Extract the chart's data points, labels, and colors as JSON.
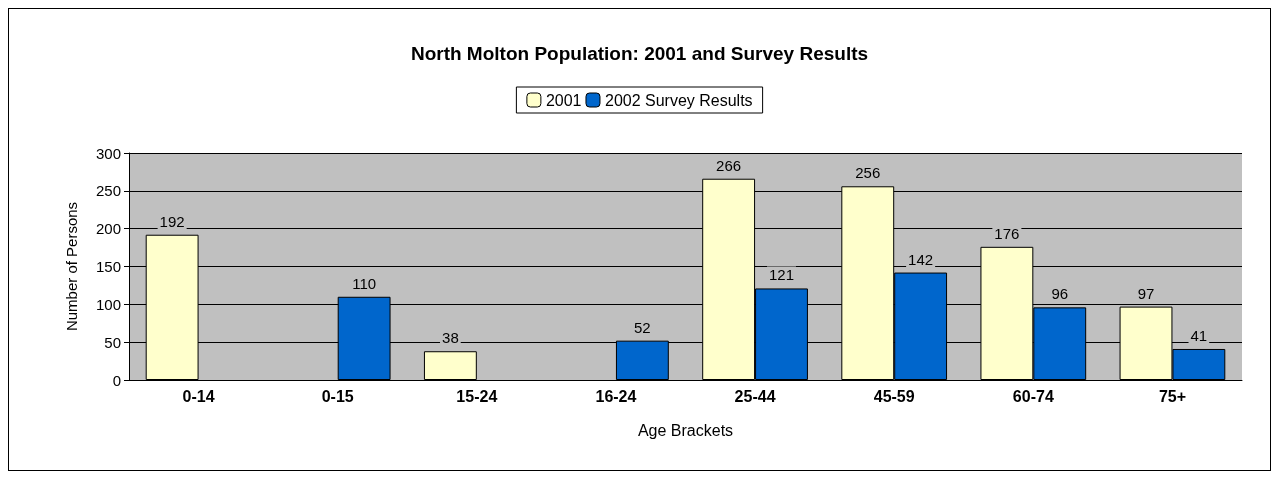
{
  "chart_data": {
    "type": "bar",
    "title": "North Molton Population: 2001 and Survey Results",
    "xlabel": "Age Brackets",
    "ylabel": "Number of Persons",
    "categories": [
      "0-14",
      "0-15",
      "15-24",
      "16-24",
      "25-44",
      "45-59",
      "60-74",
      "75+"
    ],
    "series": [
      {
        "name": "2001",
        "color": "#ffffcc",
        "values": [
          192,
          null,
          38,
          null,
          266,
          256,
          176,
          97
        ]
      },
      {
        "name": "2002 Survey Results",
        "color": "#0066cc",
        "values": [
          null,
          110,
          null,
          52,
          121,
          142,
          96,
          41
        ]
      }
    ],
    "ylim": [
      0,
      300
    ],
    "yticks": [
      0,
      50,
      100,
      150,
      200,
      250,
      300
    ],
    "grid": "y",
    "legend": "top",
    "data_labels": true
  }
}
